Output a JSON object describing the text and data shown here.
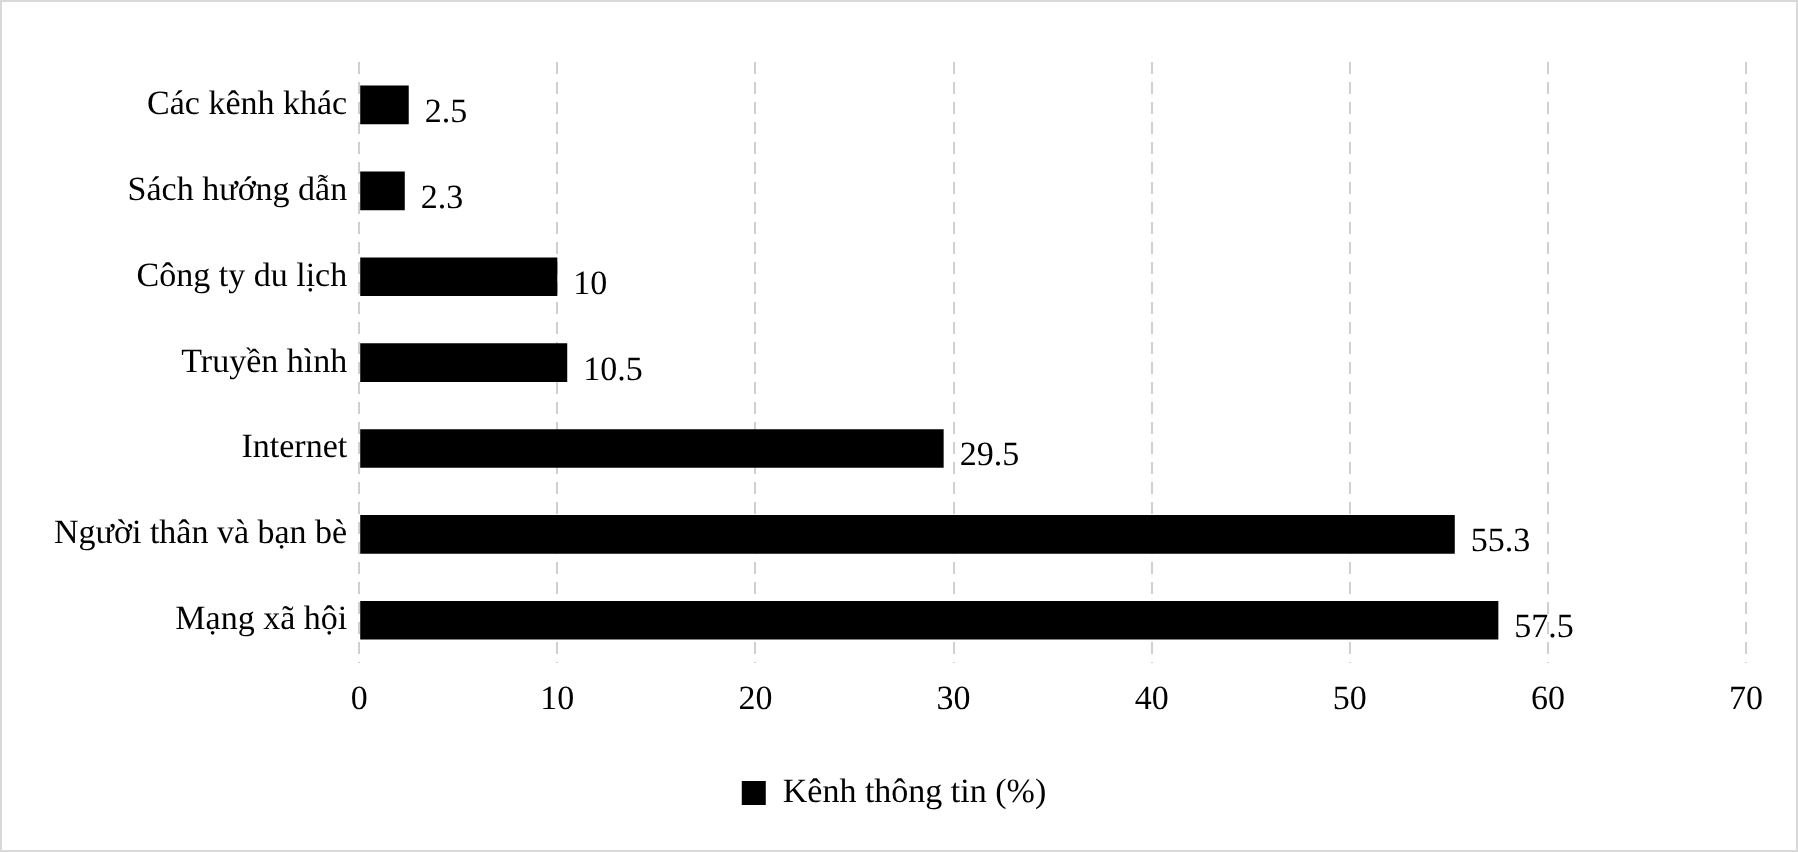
{
  "chart_data": {
    "type": "bar",
    "orientation": "horizontal",
    "categories": [
      "Các kênh khác",
      "Sách hướng dẫn",
      "Công ty du lịch",
      "Truyền hình",
      "Internet",
      "Người thân và bạn bè",
      "Mạng xã hội"
    ],
    "series": [
      {
        "name": "Kênh thông tin (%)",
        "color": "#000000",
        "values": [
          2.5,
          2.3,
          10,
          10.5,
          29.5,
          55.3,
          57.5
        ]
      }
    ],
    "xlim": [
      0,
      70
    ],
    "xticks": [
      0,
      10,
      20,
      30,
      40,
      50,
      60,
      70
    ],
    "grid": "x",
    "legend": "bottom",
    "data_labels": true
  }
}
